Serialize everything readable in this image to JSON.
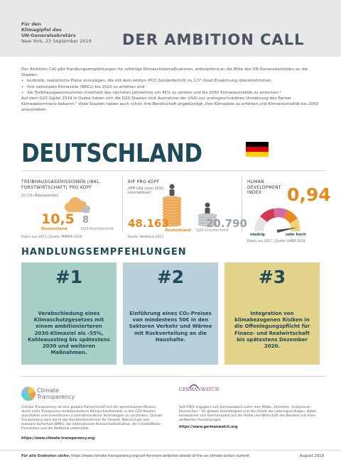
{
  "header": {
    "line1": "Für den",
    "line2": "Klimagipfel des",
    "line3": "UN-Generalsekretärs",
    "line4": "New York, 23 September 2019",
    "title": "DER AMBITION CALL"
  },
  "intro": {
    "lead": "Der Ambition Call gibt Handlungsempfehlungen für sofortige Klimaschutzmaßnahmen, anknüpfend an die Bitte des UN-Generalsekretärs an die Staaten:",
    "bullets": [
      "konkrete, realistische Pläne vorzulegen, die mit dem letzten IPCC-Sonderbericht zu 1.5°-Grad-Erwärmung übereinstimmen,",
      "ihre nationalen Klimaziele (NDCs) bis 2020 zu erhöhen und",
      "die Treibhausgasemissionen innerhalb des nächsten Jahrzehnts um 45% zu senken und bis 2050 Klimaneutralität zu erreichen.¹"
    ],
    "closing": "Auf dem G20-Gipfel 2019 in Osaka haben sich die G20-Staaten (mit Ausnahme der USA) zur uneingeschränkten Umsetzung des Pariser Klimaabkommens bekannt.² Viele Staaten haben auch schon ihre Bereitschaft angekündigt, ihre Klimaziele zu erhöhen und Klimaneutralität bis 2050 anzustreben."
  },
  "country": "DEUTSCHLAND",
  "colors": {
    "orange": "#e8891e",
    "teal_dark": "#1e4a5a",
    "card1": "#a8cfc6",
    "card2": "#b9cfd9",
    "card3": "#e2d28a"
  },
  "stats": {
    "emissions": {
      "title": "TREIBHAUSGASEMISSIONEN (INKL. FORSTWIRTSCHAFT) PRO KOPF",
      "unit": "(tn CO₂-Äquivalenten)",
      "value": "10,5",
      "value_label": "Deutschland",
      "compare": "8",
      "compare_label": "G20-Durchschnitt",
      "source": "Daten aus 2015 | Quelle: PRIMAP 2018"
    },
    "gdp": {
      "title": "BIP PRO KOPF",
      "unit": "(PPP US$ const 2015, international)",
      "value": "48.163",
      "value_label": "Deutschland",
      "compare": "20.790",
      "compare_label": "G20-Durchschnitt",
      "source": "Quelle: Weltbank 2017"
    },
    "hdi": {
      "title": "HUMAN DEVELOPMENT INDEX",
      "value": "0,94",
      "low_label": "niedrig",
      "high_label": "sehr hoch",
      "level": 0.94,
      "source": "Daten aus 2017 | Quelle: UNDP 2018"
    }
  },
  "recommendations": {
    "title": "HANDLUNGSEMPFEHLUNGEN",
    "items": [
      {
        "num": "#1",
        "text": "Verabschiedung eines Klimaschutzgesetzes mit einem ambitionierteren 2030-Klimaziel als -55%, Kohleausstieg bis spätestens 2030 und weiteren Maßnahmen."
      },
      {
        "num": "#2",
        "text": "Einführung eines CO₂-Preises von mindestens 50€ in den Sektoren Verkehr und Wärme mit Rückverteilung an die Haushalte."
      },
      {
        "num": "#3",
        "text": "Integration von klimabezogenen Risiken in die Offenlegungspflicht für Finanz- und Realwirtschaft bis spätestens Dezember 2020."
      }
    ]
  },
  "footer": {
    "ct_name_1": "Climate",
    "ct_name_2": "Transparency",
    "ct_text": "Climate Transparency ist eine globale Partnerschaft mit der gemeinsamen Mission, durch mehr Transparenz ambitionierteres Klimaschutzhandeln in den G20-Staaten anzustoßen und Investitionen in klimafreundliche Technologien zu verstärken. Climate Transparency wird durch das Bundesministerium für Umwelt, Naturschutz und nukleare Sicherheit (BMU), die internationale Klimaschutzinitiative, die ClimateWorks Foundation und die Weltbank unterstützt.",
    "ct_url": "https://www.climate-transparency.org/",
    "gw_name": "GERMANWATCH",
    "gw_text": "Seit 1991 engagiert sich Germanwatch unter dem Motto „Hinsehen. Analysieren. Einmischen.\" für globale Gerechtigkeit und den Erhalt der Lebensgrundlagen. Dabei konzentriert sich Germanwatch auf die Politik und Wirtschaft des Nordens mit ihren weltweiten Auswirkungen.",
    "gw_url": "https://www.germanwatch.org",
    "endnotes_label": "Für alle Endnoten siehe:",
    "endnotes_url": "https://www.climate-transparency.org/call-for-more-ambition-ahead-of-the-un-climate-action-summit",
    "date": "August 2019"
  }
}
